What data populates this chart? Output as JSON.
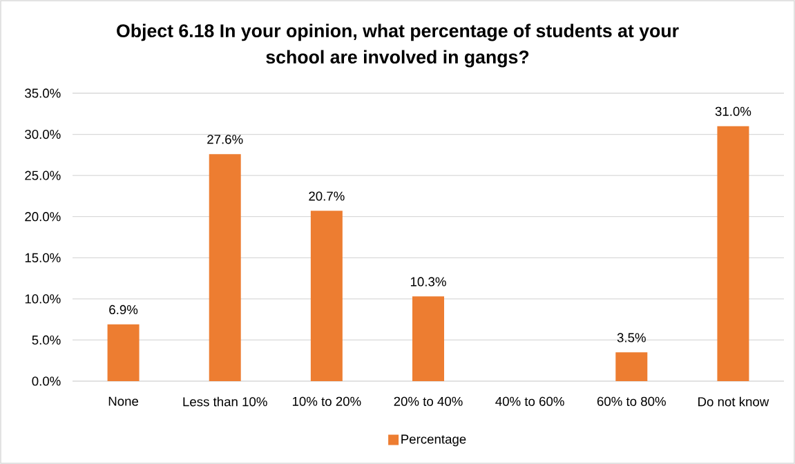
{
  "chart_data": {
    "type": "bar",
    "title": "Object 6.18 In your opinion, what percentage of students at your school are involved in gangs?",
    "categories": [
      "None",
      "Less than 10%",
      "10% to 20%",
      "20% to 40%",
      "40% to 60%",
      "60% to 80%",
      "Do not know"
    ],
    "series": [
      {
        "name": "Percentage",
        "color": "#ed7d31",
        "values": [
          6.9,
          27.6,
          20.7,
          10.3,
          null,
          3.5,
          31.0
        ],
        "value_labels": [
          "6.9%",
          "27.6%",
          "20.7%",
          "10.3%",
          null,
          "3.5%",
          "31.0%"
        ]
      }
    ],
    "ylim": [
      0,
      35
    ],
    "yticks": [
      {
        "value": 0,
        "label": "0.0%"
      },
      {
        "value": 5,
        "label": "5.0%"
      },
      {
        "value": 10,
        "label": "10.0%"
      },
      {
        "value": 15,
        "label": "15.0%"
      },
      {
        "value": 20,
        "label": "20.0%"
      },
      {
        "value": 25,
        "label": "25.0%"
      },
      {
        "value": 30,
        "label": "30.0%"
      },
      {
        "value": 35,
        "label": "35.0%"
      }
    ],
    "grid": "y",
    "legend": "bottom"
  }
}
